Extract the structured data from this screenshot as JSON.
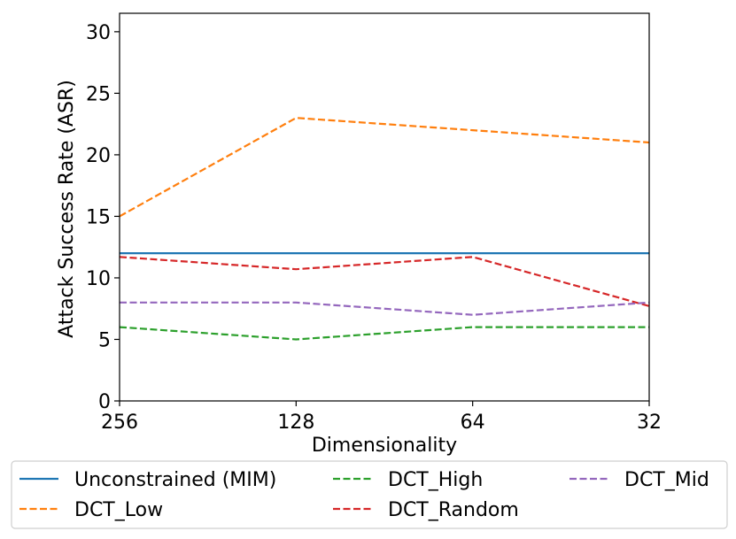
{
  "chart_data": {
    "type": "line",
    "title": "",
    "xlabel": "Dimensionality",
    "ylabel": "Attack Success Rate (ASR)",
    "categories": [
      "256",
      "128",
      "64",
      "32"
    ],
    "ylim": [
      0,
      31.5
    ],
    "yticks": [
      "0",
      "5",
      "10",
      "15",
      "20",
      "25",
      "30"
    ],
    "grid": false,
    "legend_placement": "bottom",
    "series": [
      {
        "name": "Unconstrained (MIM)",
        "values": [
          12,
          12,
          12,
          12
        ],
        "color": "#1f77b4",
        "style": "solid"
      },
      {
        "name": "DCT_Low",
        "values": [
          15,
          23,
          22,
          21
        ],
        "color": "#ff7f0e",
        "style": "dashed"
      },
      {
        "name": "DCT_High",
        "values": [
          6,
          5,
          6,
          6
        ],
        "color": "#2ca02c",
        "style": "dashed"
      },
      {
        "name": "DCT_Random",
        "values": [
          11.7,
          10.7,
          11.7,
          7.7
        ],
        "color": "#d62728",
        "style": "dashed"
      },
      {
        "name": "DCT_Mid",
        "values": [
          8,
          8,
          7,
          8
        ],
        "color": "#9467bd",
        "style": "dashed"
      }
    ]
  }
}
